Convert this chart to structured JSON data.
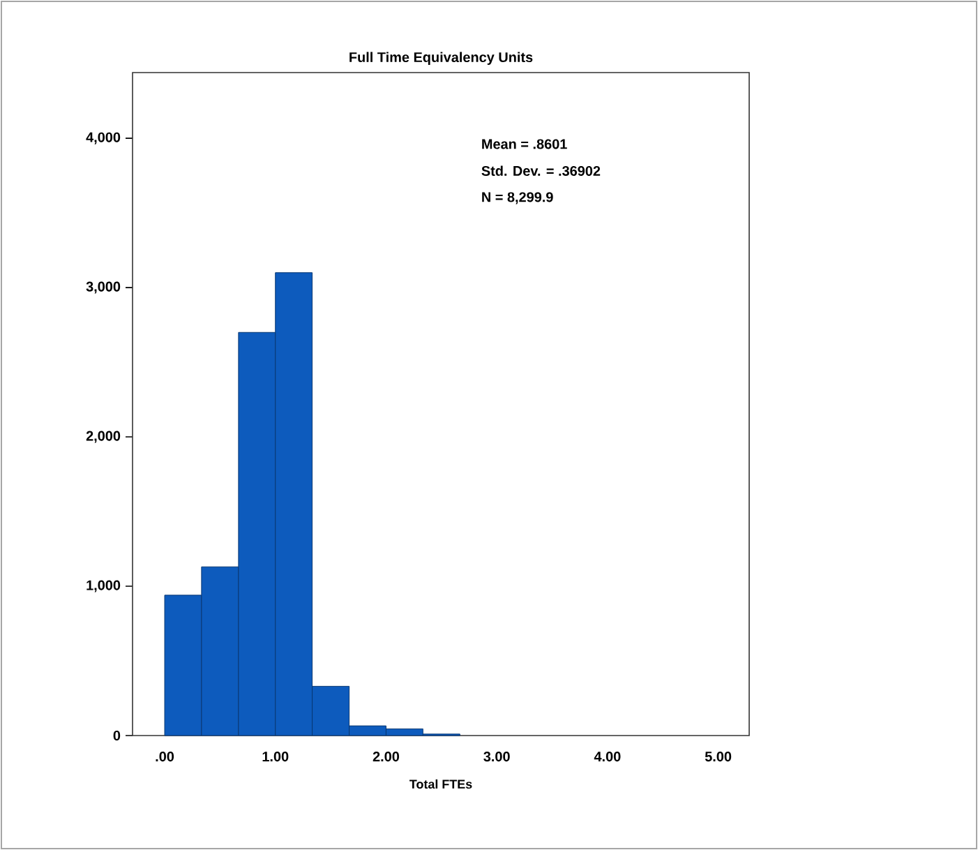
{
  "chart_data": {
    "type": "histogram",
    "title": "Full Time Equivalency Units",
    "xlabel": "Total FTEs",
    "bins": [
      0,
      0.333,
      0.667,
      1,
      1.333,
      1.667,
      2,
      2.333,
      2.667
    ],
    "values": [
      940,
      1130,
      2700,
      3100,
      330,
      65,
      45,
      10
    ],
    "color": "#0d5bbd",
    "xlim": [
      -0.29,
      5.28
    ],
    "ylim": [
      0,
      4440
    ],
    "xticks": [
      {
        "value": 0,
        "label": ".00"
      },
      {
        "value": 1,
        "label": "1.00"
      },
      {
        "value": 2,
        "label": "2.00"
      },
      {
        "value": 3,
        "label": "3.00"
      },
      {
        "value": 4,
        "label": "4.00"
      },
      {
        "value": 5,
        "label": "5.00"
      }
    ],
    "yticks": [
      0,
      {
        "value": 1000,
        "label": "1,000"
      },
      {
        "value": 2000,
        "label": "2,000"
      },
      {
        "value": 3000,
        "label": "3,000"
      },
      {
        "value": 4000,
        "label": "4,000"
      }
    ],
    "annotations": [
      "Mean = .8601",
      "Std. Dev. = .36902",
      "N = 8,299.9"
    ]
  }
}
